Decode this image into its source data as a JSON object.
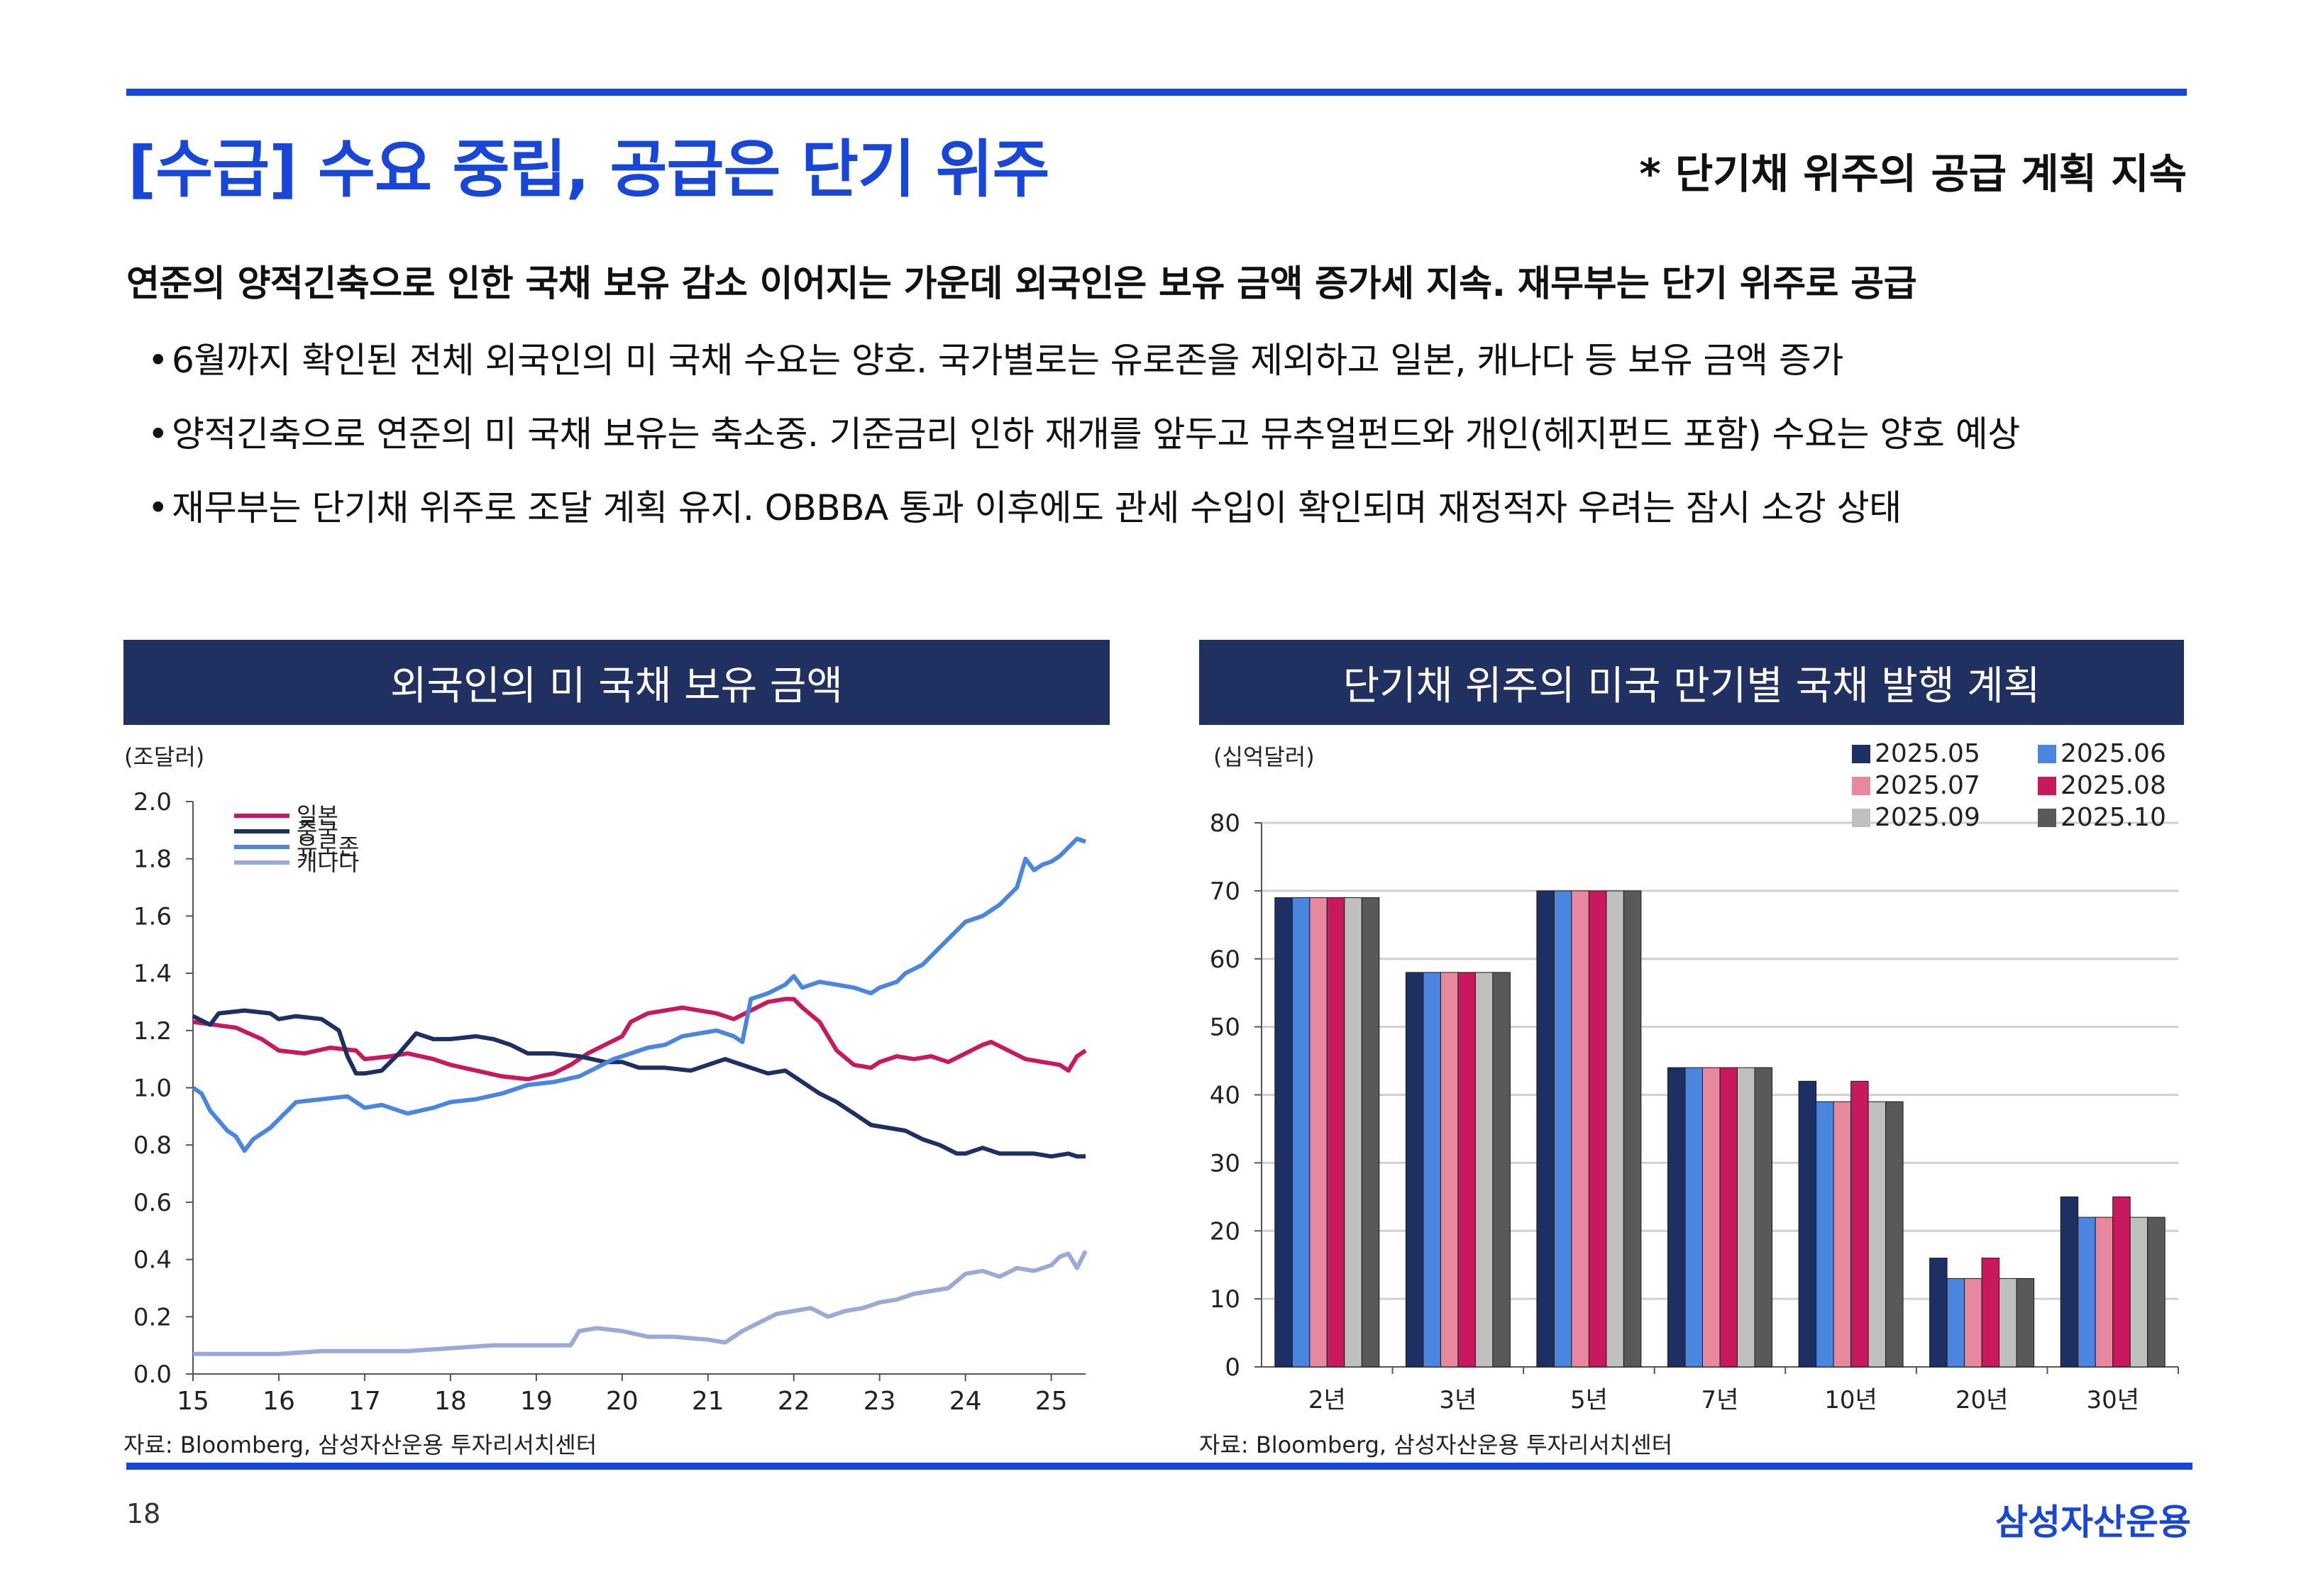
{
  "header": {
    "title": "[수급] 수요 중립, 공급은 단기 위주",
    "subtitle": "* 단기채 위주의 공급 계획 지속"
  },
  "summary": {
    "headline": "연준의 양적긴축으로 인한 국채 보유 감소 이어지는 가운데 외국인은 보유 금액 증가세 지속. 재무부는 단기 위주로 공급",
    "bullets": [
      "6월까지 확인된 전체 외국인의 미 국채 수요는 양호. 국가별로는 유로존을 제외하고 일본, 캐나다 등 보유 금액 증가",
      "양적긴축으로 연준의 미 국채 보유는 축소중. 기준금리 인하 재개를 앞두고 뮤추얼펀드와 개인(헤지펀드 포함) 수요는 양호 예상",
      "재무부는 단기채 위주로 조달 계획 유지. OBBBA 통과 이후에도 관세 수입이 확인되며 재정적자 우려는 잠시 소강 상태"
    ],
    "bullet_mark": "•"
  },
  "chart_data": [
    {
      "type": "line",
      "title": "외국인의 미 국채 보유 금액",
      "unit_label": "(조달러)",
      "ylim": [
        0,
        2.0
      ],
      "yticks": [
        "0.0",
        "0.2",
        "0.4",
        "0.6",
        "0.8",
        "1.0",
        "1.2",
        "1.4",
        "1.6",
        "1.8",
        "2.0"
      ],
      "xlim": [
        2015,
        2025.4
      ],
      "xtick_values": [
        2015,
        2016,
        2017,
        2018,
        2019,
        2020,
        2021,
        2022,
        2023,
        2024,
        2025
      ],
      "xtick_labels": [
        "15",
        "16",
        "17",
        "18",
        "19",
        "20",
        "21",
        "22",
        "23",
        "24",
        "25"
      ],
      "series": [
        {
          "name": "일본",
          "color": "#c8195e",
          "points": [
            [
              2015.0,
              1.23
            ],
            [
              2015.5,
              1.21
            ],
            [
              2015.8,
              1.17
            ],
            [
              2016.0,
              1.13
            ],
            [
              2016.3,
              1.12
            ],
            [
              2016.6,
              1.14
            ],
            [
              2016.9,
              1.13
            ],
            [
              2017.0,
              1.1
            ],
            [
              2017.3,
              1.11
            ],
            [
              2017.5,
              1.12
            ],
            [
              2017.8,
              1.1
            ],
            [
              2018.0,
              1.08
            ],
            [
              2018.3,
              1.06
            ],
            [
              2018.6,
              1.04
            ],
            [
              2018.9,
              1.03
            ],
            [
              2019.2,
              1.05
            ],
            [
              2019.4,
              1.08
            ],
            [
              2019.6,
              1.12
            ],
            [
              2019.8,
              1.15
            ],
            [
              2020.0,
              1.18
            ],
            [
              2020.1,
              1.23
            ],
            [
              2020.3,
              1.26
            ],
            [
              2020.5,
              1.27
            ],
            [
              2020.7,
              1.28
            ],
            [
              2020.9,
              1.27
            ],
            [
              2021.1,
              1.26
            ],
            [
              2021.3,
              1.24
            ],
            [
              2021.5,
              1.27
            ],
            [
              2021.7,
              1.3
            ],
            [
              2021.9,
              1.31
            ],
            [
              2022.0,
              1.31
            ],
            [
              2022.1,
              1.28
            ],
            [
              2022.3,
              1.23
            ],
            [
              2022.5,
              1.13
            ],
            [
              2022.7,
              1.08
            ],
            [
              2022.9,
              1.07
            ],
            [
              2023.0,
              1.09
            ],
            [
              2023.2,
              1.11
            ],
            [
              2023.4,
              1.1
            ],
            [
              2023.6,
              1.11
            ],
            [
              2023.8,
              1.09
            ],
            [
              2024.0,
              1.12
            ],
            [
              2024.2,
              1.15
            ],
            [
              2024.3,
              1.16
            ],
            [
              2024.5,
              1.13
            ],
            [
              2024.7,
              1.1
            ],
            [
              2024.9,
              1.09
            ],
            [
              2025.1,
              1.08
            ],
            [
              2025.2,
              1.06
            ],
            [
              2025.3,
              1.11
            ],
            [
              2025.4,
              1.13
            ]
          ]
        },
        {
          "name": "중국",
          "color": "#1e2f63",
          "points": [
            [
              2015.0,
              1.25
            ],
            [
              2015.2,
              1.22
            ],
            [
              2015.3,
              1.26
            ],
            [
              2015.6,
              1.27
            ],
            [
              2015.9,
              1.26
            ],
            [
              2016.0,
              1.24
            ],
            [
              2016.2,
              1.25
            ],
            [
              2016.5,
              1.24
            ],
            [
              2016.7,
              1.2
            ],
            [
              2016.8,
              1.11
            ],
            [
              2016.9,
              1.05
            ],
            [
              2017.0,
              1.05
            ],
            [
              2017.2,
              1.06
            ],
            [
              2017.4,
              1.12
            ],
            [
              2017.6,
              1.19
            ],
            [
              2017.8,
              1.17
            ],
            [
              2018.0,
              1.17
            ],
            [
              2018.3,
              1.18
            ],
            [
              2018.5,
              1.17
            ],
            [
              2018.7,
              1.15
            ],
            [
              2018.9,
              1.12
            ],
            [
              2019.2,
              1.12
            ],
            [
              2019.5,
              1.11
            ],
            [
              2019.8,
              1.09
            ],
            [
              2020.0,
              1.09
            ],
            [
              2020.2,
              1.07
            ],
            [
              2020.5,
              1.07
            ],
            [
              2020.8,
              1.06
            ],
            [
              2021.0,
              1.08
            ],
            [
              2021.2,
              1.1
            ],
            [
              2021.5,
              1.07
            ],
            [
              2021.7,
              1.05
            ],
            [
              2021.9,
              1.06
            ],
            [
              2022.1,
              1.02
            ],
            [
              2022.3,
              0.98
            ],
            [
              2022.5,
              0.95
            ],
            [
              2022.7,
              0.91
            ],
            [
              2022.9,
              0.87
            ],
            [
              2023.1,
              0.86
            ],
            [
              2023.3,
              0.85
            ],
            [
              2023.5,
              0.82
            ],
            [
              2023.7,
              0.8
            ],
            [
              2023.9,
              0.77
            ],
            [
              2024.0,
              0.77
            ],
            [
              2024.2,
              0.79
            ],
            [
              2024.4,
              0.77
            ],
            [
              2024.6,
              0.77
            ],
            [
              2024.8,
              0.77
            ],
            [
              2025.0,
              0.76
            ],
            [
              2025.2,
              0.77
            ],
            [
              2025.3,
              0.76
            ],
            [
              2025.4,
              0.76
            ]
          ]
        },
        {
          "name": "유로존",
          "color": "#4a86e0",
          "points": [
            [
              2015.0,
              1.0
            ],
            [
              2015.1,
              0.98
            ],
            [
              2015.2,
              0.92
            ],
            [
              2015.4,
              0.85
            ],
            [
              2015.5,
              0.83
            ],
            [
              2015.6,
              0.78
            ],
            [
              2015.7,
              0.82
            ],
            [
              2015.9,
              0.86
            ],
            [
              2016.0,
              0.89
            ],
            [
              2016.2,
              0.95
            ],
            [
              2016.5,
              0.96
            ],
            [
              2016.8,
              0.97
            ],
            [
              2017.0,
              0.93
            ],
            [
              2017.2,
              0.94
            ],
            [
              2017.5,
              0.91
            ],
            [
              2017.8,
              0.93
            ],
            [
              2018.0,
              0.95
            ],
            [
              2018.3,
              0.96
            ],
            [
              2018.6,
              0.98
            ],
            [
              2018.9,
              1.01
            ],
            [
              2019.2,
              1.02
            ],
            [
              2019.5,
              1.04
            ],
            [
              2019.7,
              1.07
            ],
            [
              2019.9,
              1.1
            ],
            [
              2020.1,
              1.12
            ],
            [
              2020.3,
              1.14
            ],
            [
              2020.5,
              1.15
            ],
            [
              2020.7,
              1.18
            ],
            [
              2020.9,
              1.19
            ],
            [
              2021.1,
              1.2
            ],
            [
              2021.3,
              1.18
            ],
            [
              2021.4,
              1.16
            ],
            [
              2021.5,
              1.31
            ],
            [
              2021.7,
              1.33
            ],
            [
              2021.9,
              1.36
            ],
            [
              2022.0,
              1.39
            ],
            [
              2022.1,
              1.35
            ],
            [
              2022.3,
              1.37
            ],
            [
              2022.5,
              1.36
            ],
            [
              2022.7,
              1.35
            ],
            [
              2022.9,
              1.33
            ],
            [
              2023.0,
              1.35
            ],
            [
              2023.2,
              1.37
            ],
            [
              2023.3,
              1.4
            ],
            [
              2023.5,
              1.43
            ],
            [
              2023.7,
              1.49
            ],
            [
              2023.9,
              1.55
            ],
            [
              2024.0,
              1.58
            ],
            [
              2024.2,
              1.6
            ],
            [
              2024.4,
              1.64
            ],
            [
              2024.6,
              1.7
            ],
            [
              2024.7,
              1.8
            ],
            [
              2024.8,
              1.76
            ],
            [
              2024.9,
              1.78
            ],
            [
              2025.0,
              1.79
            ],
            [
              2025.1,
              1.81
            ],
            [
              2025.2,
              1.84
            ],
            [
              2025.3,
              1.87
            ],
            [
              2025.4,
              1.86
            ]
          ]
        },
        {
          "name": "캐나다",
          "color": "#9aa9d6",
          "points": [
            [
              2015.0,
              0.07
            ],
            [
              2015.5,
              0.07
            ],
            [
              2016.0,
              0.07
            ],
            [
              2016.5,
              0.08
            ],
            [
              2017.0,
              0.08
            ],
            [
              2017.5,
              0.08
            ],
            [
              2018.0,
              0.09
            ],
            [
              2018.5,
              0.1
            ],
            [
              2019.0,
              0.1
            ],
            [
              2019.4,
              0.1
            ],
            [
              2019.5,
              0.15
            ],
            [
              2019.7,
              0.16
            ],
            [
              2020.0,
              0.15
            ],
            [
              2020.3,
              0.13
            ],
            [
              2020.6,
              0.13
            ],
            [
              2021.0,
              0.12
            ],
            [
              2021.2,
              0.11
            ],
            [
              2021.4,
              0.15
            ],
            [
              2021.6,
              0.18
            ],
            [
              2021.8,
              0.21
            ],
            [
              2022.0,
              0.22
            ],
            [
              2022.2,
              0.23
            ],
            [
              2022.4,
              0.2
            ],
            [
              2022.6,
              0.22
            ],
            [
              2022.8,
              0.23
            ],
            [
              2023.0,
              0.25
            ],
            [
              2023.2,
              0.26
            ],
            [
              2023.4,
              0.28
            ],
            [
              2023.6,
              0.29
            ],
            [
              2023.8,
              0.3
            ],
            [
              2024.0,
              0.35
            ],
            [
              2024.2,
              0.36
            ],
            [
              2024.4,
              0.34
            ],
            [
              2024.6,
              0.37
            ],
            [
              2024.8,
              0.36
            ],
            [
              2025.0,
              0.38
            ],
            [
              2025.1,
              0.41
            ],
            [
              2025.2,
              0.42
            ],
            [
              2025.3,
              0.37
            ],
            [
              2025.4,
              0.43
            ]
          ]
        }
      ]
    },
    {
      "type": "bar",
      "title": "단기채 위주의 미국 만기별 국채 발행 계획",
      "unit_label": "(십억달러)",
      "ylim": [
        0,
        80
      ],
      "yticks": [
        "0",
        "10",
        "20",
        "30",
        "40",
        "50",
        "60",
        "70",
        "80"
      ],
      "categories": [
        "2년",
        "3년",
        "5년",
        "7년",
        "10년",
        "20년",
        "30년"
      ],
      "series": [
        {
          "name": "2025.05",
          "color": "#1e2f63",
          "values": [
            69,
            58,
            70,
            44,
            42,
            16,
            25
          ]
        },
        {
          "name": "2025.06",
          "color": "#4a86e0",
          "values": [
            69,
            58,
            70,
            44,
            39,
            13,
            22
          ]
        },
        {
          "name": "2025.07",
          "color": "#e8889e",
          "values": [
            69,
            58,
            70,
            44,
            39,
            13,
            22
          ]
        },
        {
          "name": "2025.08",
          "color": "#c8195e",
          "values": [
            69,
            58,
            70,
            44,
            42,
            16,
            25
          ]
        },
        {
          "name": "2025.09",
          "color": "#bfbfbf",
          "values": [
            69,
            58,
            70,
            44,
            39,
            13,
            22
          ]
        },
        {
          "name": "2025.10",
          "color": "#595959",
          "values": [
            69,
            58,
            70,
            44,
            39,
            13,
            22
          ]
        }
      ]
    }
  ],
  "footer": {
    "source_left": "자료: Bloomberg, 삼성자산운용 투자리서치센터",
    "source_right": "자료: Bloomberg, 삼성자산운용 투자리서치센터",
    "page_number": "18",
    "brand": "삼성자산운용"
  }
}
